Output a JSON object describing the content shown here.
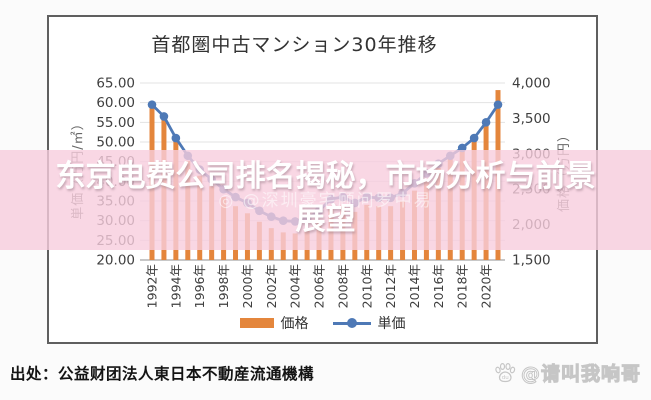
{
  "chart_data": {
    "type": "bar+line",
    "title": "首都圏中古マンション30年推移",
    "years": [
      1992,
      1993,
      1994,
      1995,
      1996,
      1997,
      1998,
      1999,
      2000,
      2001,
      2002,
      2003,
      2004,
      2005,
      2006,
      2007,
      2008,
      2009,
      2010,
      2011,
      2012,
      2013,
      2014,
      2015,
      2016,
      2017,
      2018,
      2019,
      2020,
      2021
    ],
    "x_ticks": [
      "1992年",
      "1994年",
      "1996年",
      "1998年",
      "2000年",
      "2002年",
      "2004年",
      "2006年",
      "2008年",
      "2010年",
      "2012年",
      "2014年",
      "2016年",
      "2018年",
      "2020年"
    ],
    "left_axis": {
      "label": "単価（万円/㎡）",
      "min": 20,
      "max": 65,
      "step": 5
    },
    "right_axis": {
      "label": "価格（万円）",
      "min": 1500,
      "max": 4000,
      "step": 500
    },
    "left_ticks": [
      "65.00",
      "60.00",
      "55.00",
      "50.00",
      "45.00",
      "40.00",
      "35.00",
      "30.00",
      "25.00",
      "20.00"
    ],
    "right_ticks": [
      "4,000",
      "3,500",
      "3,000",
      "2,500",
      "2,000",
      "1,500"
    ],
    "series": [
      {
        "name": "価格",
        "type": "bar",
        "axis": "right",
        "color": "#e4863c",
        "values": [
          3700,
          3500,
          3180,
          2900,
          2690,
          2540,
          2390,
          2260,
          2160,
          2040,
          1950,
          1890,
          1875,
          1920,
          2040,
          2230,
          2270,
          2180,
          2280,
          2260,
          2260,
          2330,
          2480,
          2640,
          2800,
          2930,
          3060,
          3210,
          3460,
          3900
        ]
      },
      {
        "name": "単価",
        "type": "line",
        "axis": "left",
        "color": "#4e79b6",
        "values": [
          59.5,
          56.5,
          51.0,
          46.5,
          43.0,
          40.5,
          38.0,
          36.0,
          34.5,
          32.5,
          31.0,
          30.0,
          29.8,
          30.5,
          32.5,
          35.5,
          36.0,
          34.5,
          36.0,
          35.8,
          35.8,
          37.0,
          39.5,
          42.0,
          44.5,
          46.5,
          48.5,
          51.0,
          55.0,
          59.5
        ]
      }
    ],
    "legend_position": "bottom",
    "grid": true
  },
  "overlay": {
    "lines": [
      "东京电费公司排名揭秘，市场分析与前景",
      "展望"
    ],
    "watermark": "◎ @深圳豪宅顾问罗中易"
  },
  "footer": {
    "source": "出处：公益财团法人東日本不動産流通機構",
    "watermark": "@请叫我响哥"
  },
  "colors": {
    "bar": "#e4863c",
    "line": "#4e79b6",
    "overlay_band": "rgba(247,205,221,0.80)",
    "gridline": "#e3e3e3"
  }
}
